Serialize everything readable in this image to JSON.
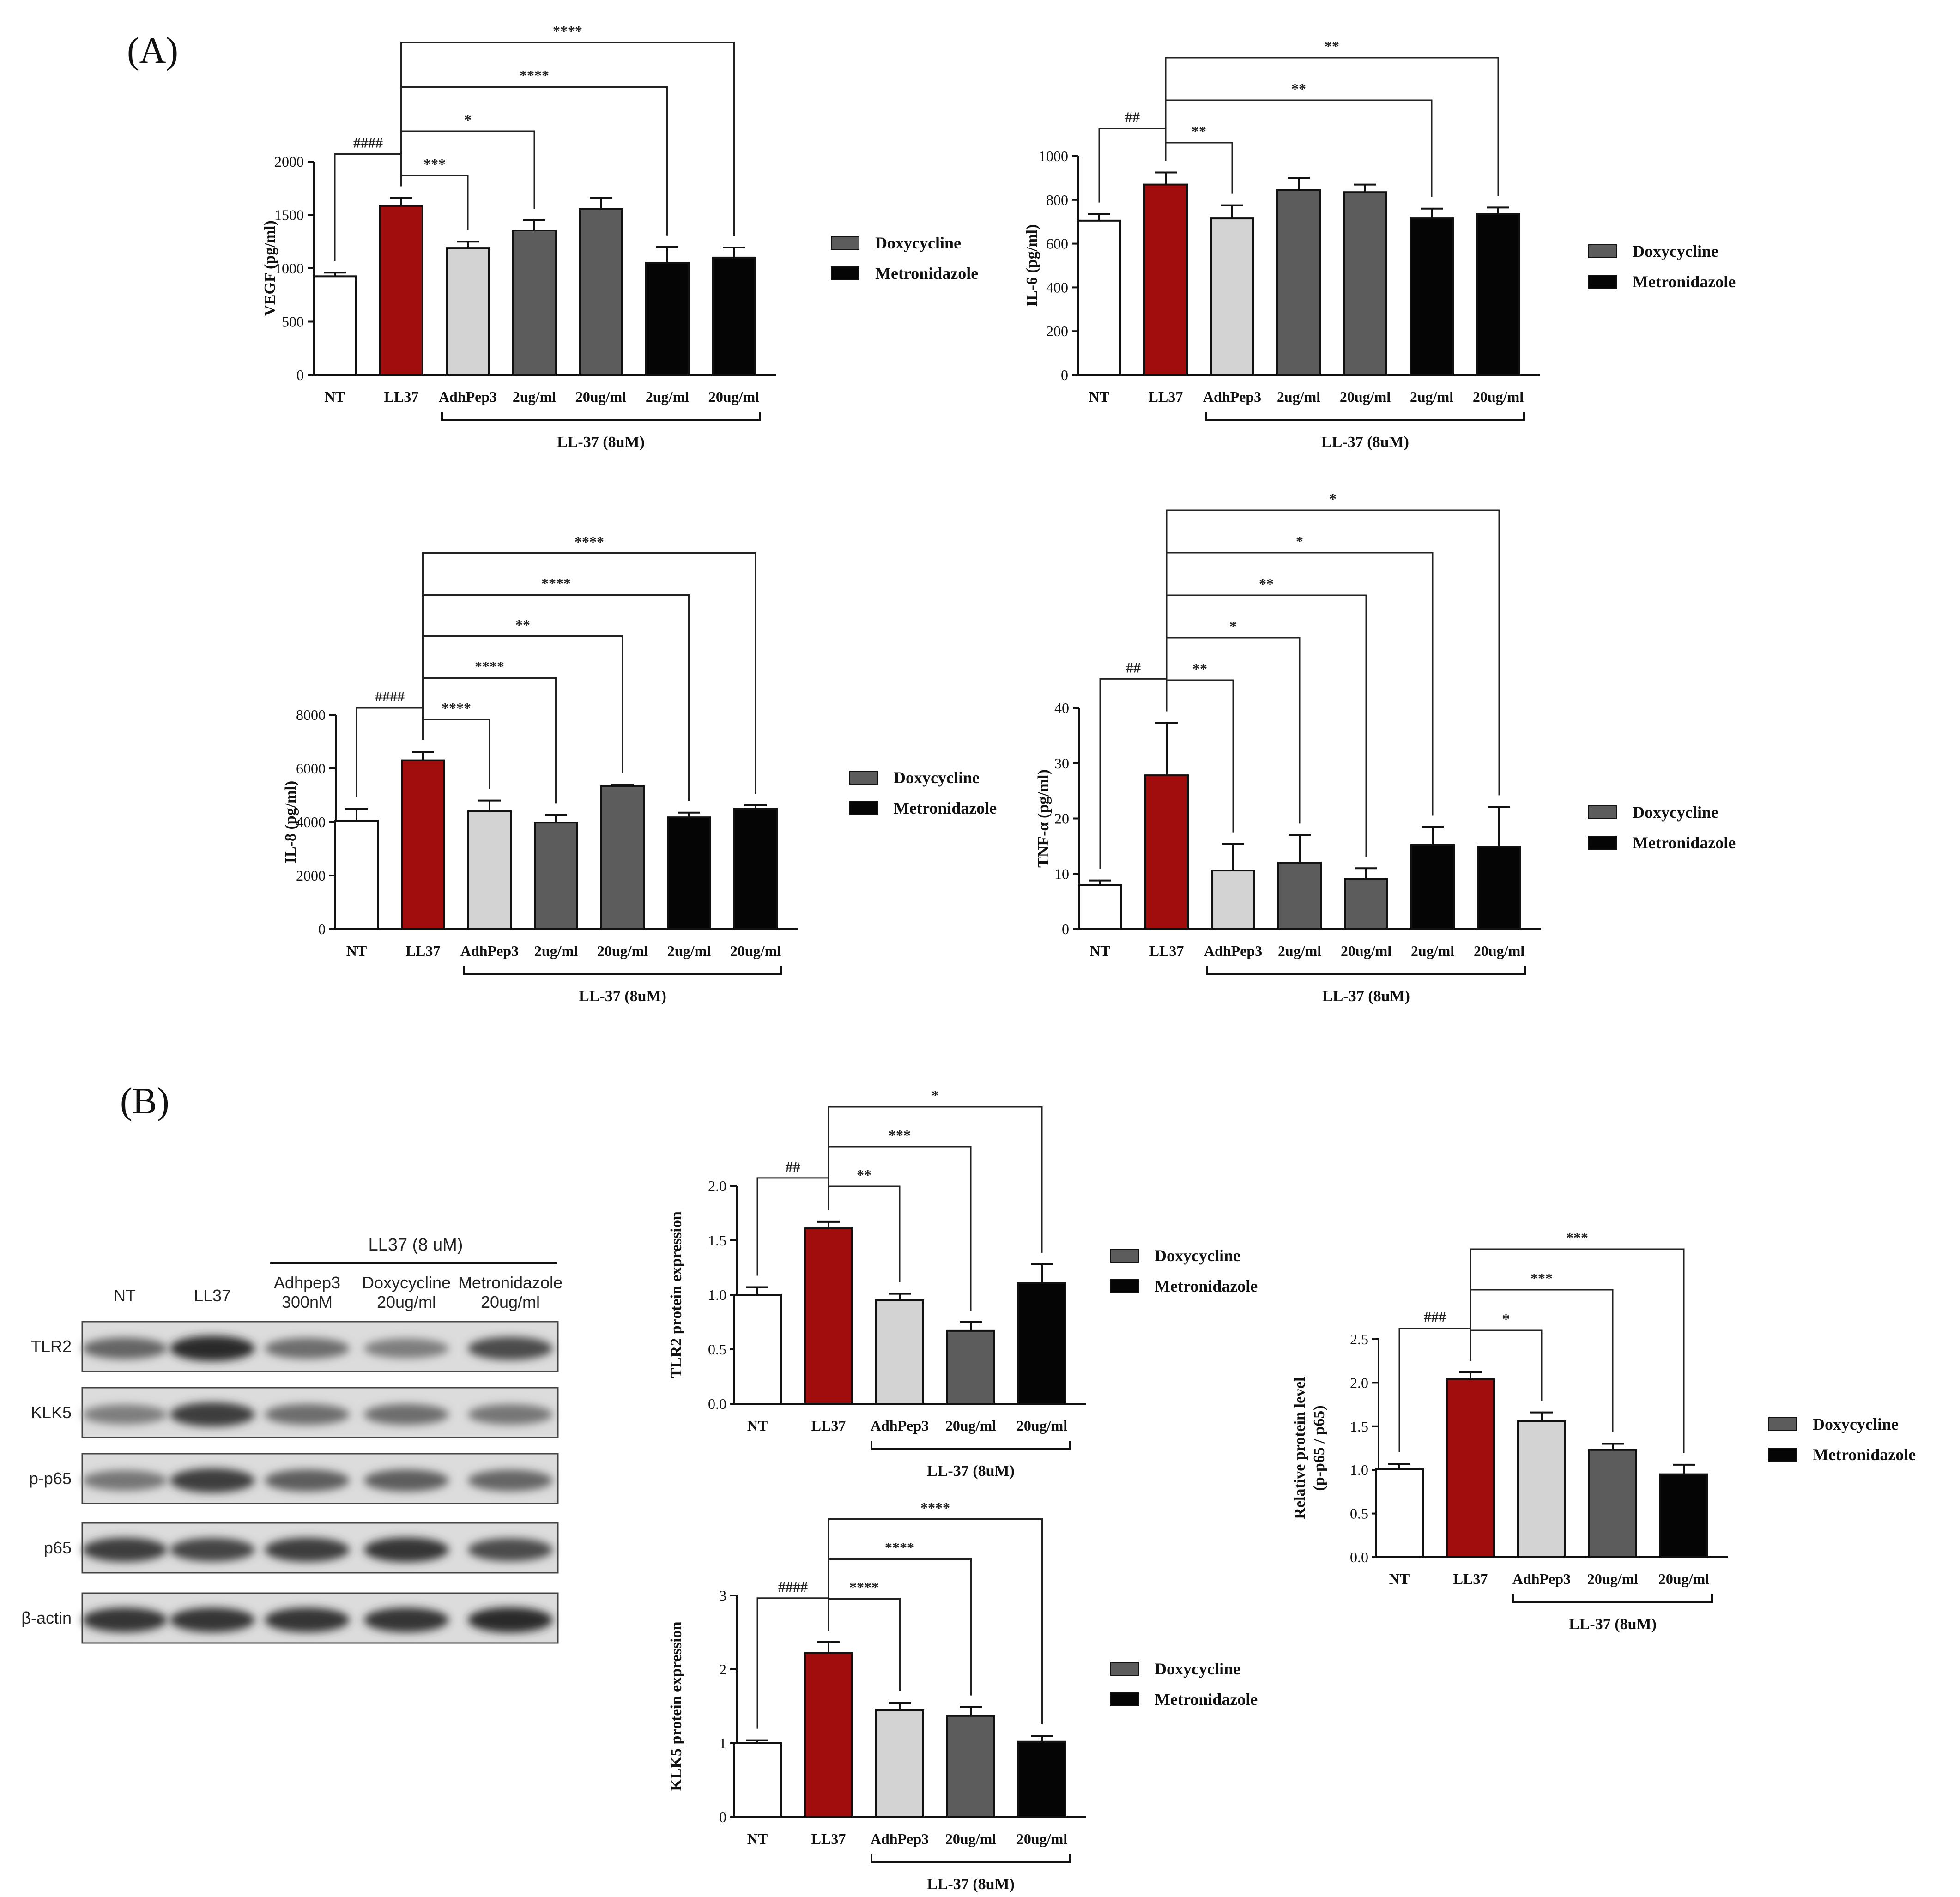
{
  "panel_labels": {
    "a": "(A)",
    "b": "(B)"
  },
  "legend": {
    "dox": "Doxycycline",
    "met": "Metronidazole"
  },
  "colors": {
    "nt": "#ffffff",
    "ll37": "#a10d0d",
    "adh": "#d3d3d3",
    "dox": "#5c5c5c",
    "met": "#050505",
    "axis": "#111111"
  },
  "chart_data": [
    {
      "id": "vegf",
      "type": "bar",
      "ylabel": "VEGF (pg/ml)",
      "categories": [
        "NT",
        "LL37",
        "AdhPep3",
        "2ug/ml",
        "20ug/ml",
        "2ug/ml",
        "20ug/ml"
      ],
      "groups": [
        "nt",
        "ll37",
        "adh",
        "dox",
        "dox",
        "met",
        "met"
      ],
      "values": [
        925,
        1585,
        1190,
        1355,
        1555,
        1050,
        1100
      ],
      "errors": [
        35,
        75,
        60,
        95,
        105,
        150,
        95
      ],
      "ylim": [
        0,
        2000
      ],
      "yticks": [
        0,
        500,
        1000,
        1500,
        2000
      ],
      "bracket_label": "LL-37 (8uM)",
      "annotations": [
        {
          "from": 0,
          "to": 1,
          "label": "####"
        },
        {
          "from": 1,
          "to": 2,
          "label": "***"
        },
        {
          "from": 1,
          "to": 3,
          "label": "*"
        },
        {
          "from": 1,
          "to": 5,
          "label": "****"
        },
        {
          "from": 1,
          "to": 6,
          "label": "****"
        }
      ]
    },
    {
      "id": "il6",
      "type": "bar",
      "ylabel": "IL-6 (pg/ml)",
      "categories": [
        "NT",
        "LL37",
        "AdhPep3",
        "2ug/ml",
        "20ug/ml",
        "2ug/ml",
        "20ug/ml"
      ],
      "groups": [
        "nt",
        "ll37",
        "adh",
        "dox",
        "dox",
        "met",
        "met"
      ],
      "values": [
        705,
        870,
        715,
        845,
        835,
        715,
        735
      ],
      "errors": [
        30,
        55,
        60,
        55,
        35,
        45,
        30
      ],
      "ylim": [
        0,
        1000
      ],
      "yticks": [
        0,
        200,
        400,
        600,
        800,
        1000
      ],
      "bracket_label": "LL-37 (8uM)",
      "annotations": [
        {
          "from": 0,
          "to": 1,
          "label": "##"
        },
        {
          "from": 1,
          "to": 2,
          "label": "**"
        },
        {
          "from": 1,
          "to": 5,
          "label": "**"
        },
        {
          "from": 1,
          "to": 6,
          "label": "**"
        }
      ]
    },
    {
      "id": "il8",
      "type": "bar",
      "ylabel": "IL-8 (pg/ml)",
      "categories": [
        "NT",
        "LL37",
        "AdhPep3",
        "2ug/ml",
        "20ug/ml",
        "2ug/ml",
        "20ug/ml"
      ],
      "groups": [
        "nt",
        "ll37",
        "adh",
        "dox",
        "dox",
        "met",
        "met"
      ],
      "values": [
        4050,
        6300,
        4400,
        3980,
        5330,
        4170,
        4490
      ],
      "errors": [
        450,
        320,
        400,
        290,
        60,
        180,
        130
      ],
      "ylim": [
        0,
        8000
      ],
      "yticks": [
        0,
        2000,
        4000,
        6000,
        8000
      ],
      "bracket_label": "LL-37 (8uM)",
      "annotations": [
        {
          "from": 0,
          "to": 1,
          "label": "####"
        },
        {
          "from": 1,
          "to": 2,
          "label": "****"
        },
        {
          "from": 1,
          "to": 3,
          "label": "****"
        },
        {
          "from": 1,
          "to": 4,
          "label": "**"
        },
        {
          "from": 1,
          "to": 5,
          "label": "****"
        },
        {
          "from": 1,
          "to": 6,
          "label": "****"
        }
      ]
    },
    {
      "id": "tnf",
      "type": "bar",
      "ylabel": "TNF-α (pg/ml)",
      "categories": [
        "NT",
        "LL37",
        "AdhPep3",
        "2ug/ml",
        "20ug/ml",
        "2ug/ml",
        "20ug/ml"
      ],
      "groups": [
        "nt",
        "ll37",
        "adh",
        "dox",
        "dox",
        "met",
        "met"
      ],
      "values": [
        8,
        27.8,
        10.6,
        12,
        9.1,
        15.2,
        14.9
      ],
      "errors": [
        0.8,
        9.5,
        4.8,
        5,
        1.9,
        3.3,
        7.2
      ],
      "ylim": [
        0,
        40
      ],
      "yticks": [
        0,
        10,
        20,
        30,
        40
      ],
      "bracket_label": "LL-37 (8uM)",
      "annotations": [
        {
          "from": 0,
          "to": 1,
          "label": "##"
        },
        {
          "from": 1,
          "to": 2,
          "label": "**"
        },
        {
          "from": 1,
          "to": 3,
          "label": "*"
        },
        {
          "from": 1,
          "to": 4,
          "label": "**"
        },
        {
          "from": 1,
          "to": 5,
          "label": "*"
        },
        {
          "from": 1,
          "to": 6,
          "label": "*"
        }
      ]
    },
    {
      "id": "tlr2",
      "type": "bar",
      "ylabel": "TLR2 protein expression",
      "categories": [
        "NT",
        "LL37",
        "AdhPep3",
        "20ug/ml",
        "20ug/ml"
      ],
      "groups": [
        "nt",
        "ll37",
        "adh",
        "dox",
        "met"
      ],
      "values": [
        1.0,
        1.61,
        0.95,
        0.67,
        1.11
      ],
      "errors": [
        0.07,
        0.06,
        0.06,
        0.08,
        0.17
      ],
      "ylim": [
        0,
        2.0
      ],
      "yticks": [
        0.0,
        0.5,
        1.0,
        1.5,
        2.0
      ],
      "bracket_label": "LL-37 (8uM)",
      "annotations": [
        {
          "from": 0,
          "to": 1,
          "label": "##"
        },
        {
          "from": 1,
          "to": 2,
          "label": "**"
        },
        {
          "from": 1,
          "to": 3,
          "label": "***"
        },
        {
          "from": 1,
          "to": 4,
          "label": "*"
        }
      ]
    },
    {
      "id": "klk5",
      "type": "bar",
      "ylabel": "KLK5 protein expression",
      "categories": [
        "NT",
        "LL37",
        "AdhPep3",
        "20ug/ml",
        "20ug/ml"
      ],
      "groups": [
        "nt",
        "ll37",
        "adh",
        "dox",
        "met"
      ],
      "values": [
        1.0,
        2.22,
        1.45,
        1.37,
        1.02
      ],
      "errors": [
        0.04,
        0.15,
        0.1,
        0.12,
        0.08
      ],
      "ylim": [
        0,
        3
      ],
      "yticks": [
        0,
        1,
        2,
        3
      ],
      "bracket_label": "LL-37 (8uM)",
      "annotations": [
        {
          "from": 0,
          "to": 1,
          "label": "####"
        },
        {
          "from": 1,
          "to": 2,
          "label": "****"
        },
        {
          "from": 1,
          "to": 3,
          "label": "****"
        },
        {
          "from": 1,
          "to": 4,
          "label": "****"
        }
      ]
    },
    {
      "id": "pp65",
      "type": "bar",
      "ylabel": "Relative protein level",
      "ylabel2": "(p-p65 / p65)",
      "categories": [
        "NT",
        "LL37",
        "AdhPep3",
        "20ug/ml",
        "20ug/ml"
      ],
      "groups": [
        "nt",
        "ll37",
        "adh",
        "dox",
        "met"
      ],
      "values": [
        1.01,
        2.04,
        1.56,
        1.23,
        0.95
      ],
      "errors": [
        0.06,
        0.08,
        0.1,
        0.07,
        0.11
      ],
      "ylim": [
        0,
        2.5
      ],
      "yticks": [
        0.0,
        0.5,
        1.0,
        1.5,
        2.0,
        2.5
      ],
      "bracket_label": "LL-37 (8uM)",
      "annotations": [
        {
          "from": 0,
          "to": 1,
          "label": "###"
        },
        {
          "from": 1,
          "to": 2,
          "label": "*"
        },
        {
          "from": 1,
          "to": 3,
          "label": "***"
        },
        {
          "from": 1,
          "to": 4,
          "label": "***"
        }
      ]
    }
  ],
  "blot": {
    "treatment_header": "LL37 (8 uM)",
    "lanes": [
      {
        "line1": "NT",
        "line2": ""
      },
      {
        "line1": "LL37",
        "line2": ""
      },
      {
        "line1": "Adhpep3",
        "line2": "300nM"
      },
      {
        "line1": "Doxycycline",
        "line2": "20ug/ml"
      },
      {
        "line1": "Metronidazole",
        "line2": "20ug/ml"
      }
    ],
    "rows": [
      {
        "label": "TLR2",
        "intensity": [
          0.6,
          0.95,
          0.55,
          0.45,
          0.75
        ]
      },
      {
        "label": "KLK5",
        "intensity": [
          0.45,
          0.85,
          0.55,
          0.55,
          0.5
        ]
      },
      {
        "label": "p-p65",
        "intensity": [
          0.5,
          0.85,
          0.65,
          0.65,
          0.6
        ]
      },
      {
        "label": "p65",
        "intensity": [
          0.85,
          0.8,
          0.85,
          0.9,
          0.75
        ]
      },
      {
        "label": "β-actin",
        "intensity": [
          0.9,
          0.9,
          0.9,
          0.9,
          0.95
        ]
      }
    ]
  }
}
